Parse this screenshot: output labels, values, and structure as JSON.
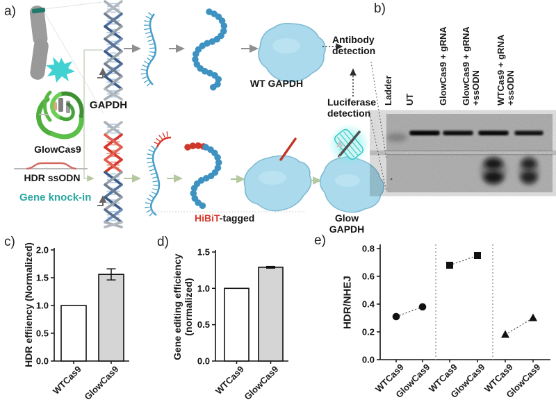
{
  "panels": {
    "a": "a)",
    "b": "b)",
    "c": "c)",
    "d": "d)",
    "e": "e)"
  },
  "panel_a": {
    "gapdh_label": "GAPDH",
    "glowcas9_label": "GlowCas9",
    "hdr_ssodn_label": "HDR ssODN",
    "gene_knockin_label": "Gene knock-in",
    "wt_gapdh_label": "WT GAPDH",
    "antibody_detection_label": "Antibody\ndetection",
    "luciferase_detection_label": "Luciferase\ndetection",
    "hibit_label": "HiBiT",
    "hibit_suffix": "-tagged",
    "glow_gapdh_label": "Glow GAPDH",
    "colors": {
      "gene_knockin_teal": "#2aa7a2",
      "hibit_red": "#d8382b",
      "mrna_blue": "#4aa0cb",
      "protein_blue": "#aadaec",
      "cas9_green": "#4fae3e",
      "glow_cyan": "#35d0d0"
    }
  },
  "panel_b": {
    "lanes": [
      "Ladder",
      "UT",
      "GlowCas9 + gRNA",
      "GlowCas9 + gRNA\n+ssODN",
      "WTCas9 + gRNA\n+ssODN"
    ],
    "top_band_opacities": [
      0.3,
      0.95,
      0.82,
      0.88,
      0.78
    ],
    "bottom_band_opacities": [
      0,
      0,
      0,
      0.9,
      0.8
    ]
  },
  "chart_data": [
    {
      "id": "chart-c",
      "type": "bar",
      "panel": "c)",
      "ylabel": "HDR effiiency (Normalized)",
      "categories": [
        "WTCas9",
        "GlowCas9"
      ],
      "values": [
        1.0,
        1.56
      ],
      "errors": [
        0,
        0.1
      ],
      "ylim": [
        0,
        2.0
      ],
      "yticks": [
        "0.0",
        "0.5",
        "1.0",
        "1.5",
        "2.0"
      ],
      "bar_fills": [
        "#ffffff",
        "#d5d5d5"
      ],
      "grid": false
    },
    {
      "id": "chart-d",
      "type": "bar",
      "panel": "d)",
      "ylabel": "Gene editing efficiency\n(normalized)",
      "categories": [
        "WTCas9",
        "GlowCas9"
      ],
      "values": [
        1.0,
        1.29
      ],
      "errors": [
        0,
        0.012
      ],
      "ylim": [
        0,
        1.5
      ],
      "yticks": [
        "0.0",
        "0.5",
        "1.0",
        "1.5"
      ],
      "bar_fills": [
        "#ffffff",
        "#d5d5d5"
      ],
      "grid": false
    },
    {
      "id": "chart-e",
      "type": "scatter",
      "panel": "e)",
      "ylabel": "HDR/NHEJ",
      "categories": [
        "WTCas9",
        "GlowCas9",
        "WTCas9",
        "GlowCas9",
        "WTCas9",
        "GlowCas9"
      ],
      "series": [
        {
          "name": "pair-1",
          "marker": "circle",
          "x_index": [
            0,
            1
          ],
          "values": [
            0.31,
            0.38
          ]
        },
        {
          "name": "pair-2",
          "marker": "square",
          "x_index": [
            2,
            3
          ],
          "values": [
            0.68,
            0.75
          ]
        },
        {
          "name": "pair-3",
          "marker": "triangle",
          "x_index": [
            4,
            5
          ],
          "values": [
            0.18,
            0.3
          ]
        }
      ],
      "ylim": [
        0,
        0.8
      ],
      "yticks": [
        "0.0",
        "0.2",
        "0.4",
        "0.6",
        "0.8"
      ],
      "separators_after_index": [
        1,
        3
      ],
      "grid": false
    }
  ]
}
